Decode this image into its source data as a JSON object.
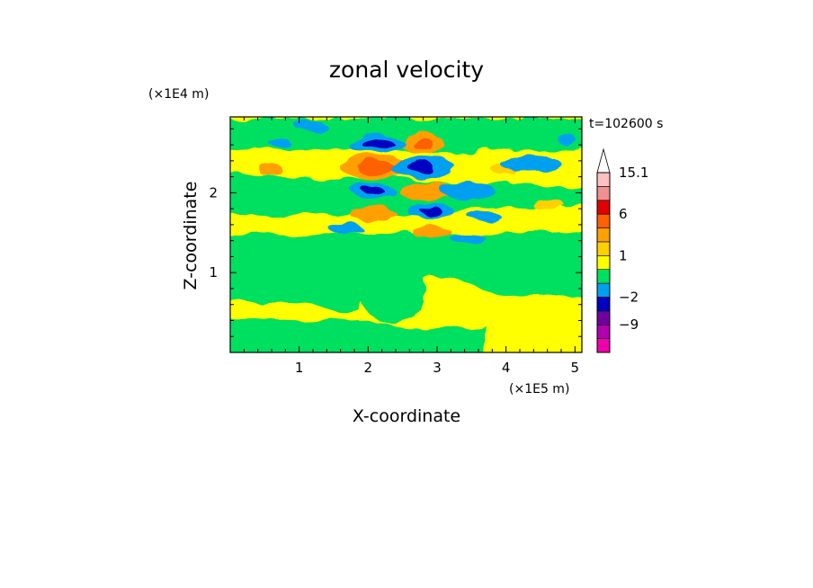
{
  "chart_data": {
    "type": "heatmap",
    "title": "zonal velocity",
    "xlabel": "X-coordinate",
    "ylabel": "Z-coordinate",
    "x_scale_label": "(×1E5 m)",
    "y_scale_label": "(×1E4 m)",
    "time_label": "t=102600 s",
    "xlim": [
      0,
      5.1
    ],
    "ylim": [
      0,
      2.95
    ],
    "x_ticks": [
      "1",
      "2",
      "3",
      "4",
      "5"
    ],
    "y_ticks": [
      "1",
      "2"
    ],
    "colorbar": {
      "levels": [
        -12,
        -9,
        -6,
        -2,
        -1,
        0,
        1,
        2,
        3,
        6,
        9,
        12,
        15.1
      ],
      "labels": [
        "15.1",
        "6",
        "1",
        "−2",
        "−9"
      ],
      "label_values": [
        15.1,
        6,
        1,
        -2,
        -9
      ],
      "colors": [
        "#ee00aa",
        "#b000b0",
        "#7000a0",
        "#0000c0",
        "#00a0f0",
        "#00e060",
        "#ffff00",
        "#ffd000",
        "#ffa000",
        "#ff6000",
        "#e00000",
        "#f09090",
        "#ffc0c0"
      ],
      "extend_max_color": "#ffffff"
    }
  }
}
